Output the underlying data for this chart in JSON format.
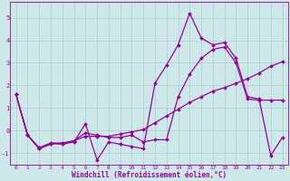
{
  "xlabel": "Windchill (Refroidissement éolien,°C)",
  "background_color": "#cce8e8",
  "grid_color": "#aacccc",
  "line_color": "#990099",
  "xlim": [
    -0.5,
    23.5
  ],
  "ylim": [
    -1.5,
    5.7
  ],
  "xticks": [
    0,
    1,
    2,
    3,
    4,
    5,
    6,
    7,
    8,
    9,
    10,
    11,
    12,
    13,
    14,
    15,
    16,
    17,
    18,
    19,
    20,
    21,
    22,
    23
  ],
  "yticks": [
    -1,
    0,
    1,
    2,
    3,
    4,
    5
  ],
  "line1_x": [
    0,
    1,
    2,
    3,
    4,
    5,
    6,
    7,
    8,
    9,
    10,
    11,
    12,
    13,
    14,
    15,
    16,
    17,
    18,
    19,
    20,
    21,
    22,
    23
  ],
  "line1_y": [
    1.6,
    -0.2,
    -0.8,
    -0.55,
    -0.6,
    -0.5,
    0.3,
    -1.3,
    -0.5,
    -0.6,
    -0.7,
    -0.8,
    2.1,
    2.9,
    3.8,
    5.2,
    4.1,
    3.8,
    3.9,
    3.2,
    1.5,
    1.4,
    -1.1,
    -0.3
  ],
  "line2_x": [
    0,
    1,
    2,
    3,
    4,
    5,
    6,
    7,
    8,
    9,
    10,
    11,
    12,
    13,
    14,
    15,
    16,
    17,
    18,
    19,
    20,
    21,
    22,
    23
  ],
  "line2_y": [
    1.6,
    -0.2,
    -0.75,
    -0.55,
    -0.55,
    -0.45,
    -0.1,
    -0.2,
    -0.3,
    -0.3,
    -0.2,
    -0.5,
    -0.4,
    -0.4,
    1.5,
    2.5,
    3.2,
    3.6,
    3.7,
    3.0,
    1.4,
    1.35,
    1.35,
    1.35
  ],
  "line3_x": [
    0,
    1,
    2,
    3,
    4,
    5,
    6,
    7,
    8,
    9,
    10,
    11,
    12,
    13,
    14,
    15,
    16,
    17,
    18,
    19,
    20,
    21,
    22,
    23
  ],
  "line3_y": [
    1.6,
    -0.2,
    -0.8,
    -0.6,
    -0.55,
    -0.45,
    -0.25,
    -0.25,
    -0.25,
    -0.15,
    -0.05,
    0.05,
    0.35,
    0.65,
    0.95,
    1.25,
    1.5,
    1.75,
    1.9,
    2.1,
    2.3,
    2.55,
    2.85,
    3.05
  ],
  "xlabel_fontsize": 5.5,
  "tick_fontsize": 4.5,
  "line_width": 0.9,
  "marker_size": 2.0
}
